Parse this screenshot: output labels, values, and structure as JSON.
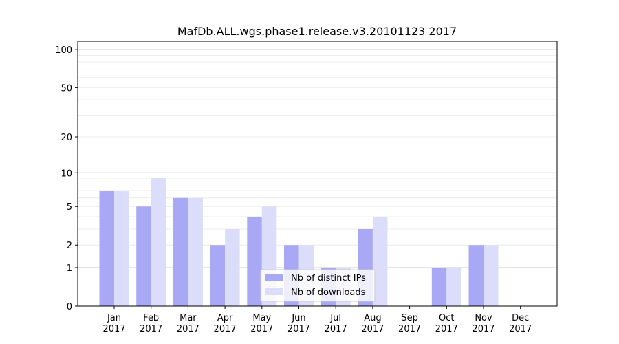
{
  "chart_data": {
    "type": "bar",
    "title": "MafDb.ALL.wgs.phase1.release.v3.20101123 2017",
    "xlabel": "",
    "ylabel": "",
    "categories": [
      [
        "Jan",
        "2017"
      ],
      [
        "Feb",
        "2017"
      ],
      [
        "Mar",
        "2017"
      ],
      [
        "Apr",
        "2017"
      ],
      [
        "May",
        "2017"
      ],
      [
        "Jun",
        "2017"
      ],
      [
        "Jul",
        "2017"
      ],
      [
        "Aug",
        "2017"
      ],
      [
        "Sep",
        "2017"
      ],
      [
        "Oct",
        "2017"
      ],
      [
        "Nov",
        "2017"
      ],
      [
        "Dec",
        "2017"
      ]
    ],
    "series": [
      {
        "name": "Nb of distinct IPs",
        "color": "#a8a8f5",
        "values": [
          7,
          5,
          6,
          2,
          4,
          2,
          1,
          3,
          0,
          1,
          2,
          0
        ]
      },
      {
        "name": "Nb of downloads",
        "color": "#dcdcfb",
        "values": [
          7,
          9,
          6,
          3,
          5,
          2,
          1,
          4,
          0,
          1,
          2,
          0
        ]
      }
    ],
    "y_scale": "log1p",
    "ylim": [
      0,
      120
    ],
    "yticks": [
      0,
      1,
      2,
      5,
      10,
      20,
      50,
      100
    ],
    "grid": true,
    "legend_position": "lower-center"
  }
}
